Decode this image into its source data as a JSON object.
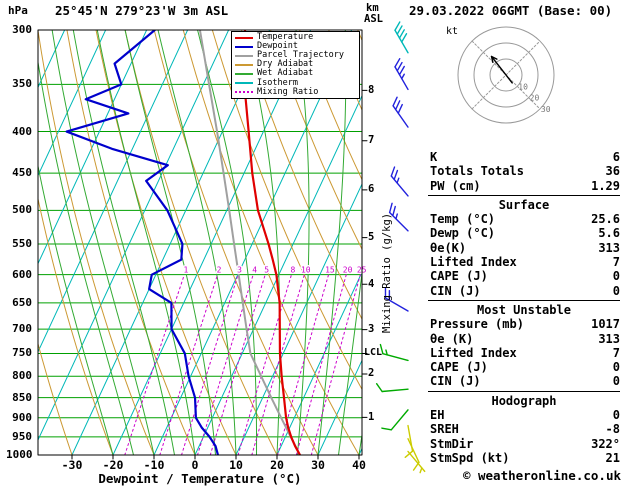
{
  "title": "25°45'N 279°23'W 3m ASL",
  "datetime": "29.03.2022 06GMT (Base: 00)",
  "copyright": "© weatheronline.co.uk",
  "axes": {
    "pressure_unit": "hPa",
    "pressure_ticks": [
      300,
      350,
      400,
      450,
      500,
      550,
      600,
      650,
      700,
      750,
      800,
      850,
      900,
      950,
      1000
    ],
    "temp_ticks": [
      -30,
      -20,
      -10,
      0,
      10,
      20,
      30,
      40
    ],
    "x_title": "Dewpoint / Temperature (°C)",
    "km_unit": "km",
    "asl_unit": "ASL",
    "km_ticks": [
      1,
      2,
      3,
      4,
      5,
      6,
      7,
      8
    ],
    "mixing_axis_label": "Mixing Ratio (g/kg)",
    "lcl_label": "LCL"
  },
  "legend": [
    {
      "label": "Temperature",
      "color": "#e00000",
      "style": "solid"
    },
    {
      "label": "Dewpoint",
      "color": "#0000cc",
      "style": "solid"
    },
    {
      "label": "Parcel Trajectory",
      "color": "#a0a0a0",
      "style": "solid"
    },
    {
      "label": "Dry Adiabat",
      "color": "#cc9933",
      "style": "solid"
    },
    {
      "label": "Wet Adiabat",
      "color": "#33aa33",
      "style": "solid"
    },
    {
      "label": "Isotherm",
      "color": "#00b8b8",
      "style": "solid"
    },
    {
      "label": "Mixing Ratio",
      "color": "#cc00cc",
      "style": "dotted"
    }
  ],
  "chart_data": {
    "type": "skewt_log_p_sounding",
    "pressure_range_hpa": [
      300,
      1000
    ],
    "surface_temp_c": 25.6,
    "surface_dewp_c": 5.6,
    "lcl_hpa": 750,
    "colors": {
      "temperature": "#e00000",
      "dewpoint": "#0000cc",
      "parcel": "#a0a0a0",
      "dry_adiabat": "#cc9933",
      "wet_adiabat": "#33aa33",
      "isotherm": "#00b8b8",
      "mixing_ratio": "#cc00cc",
      "pressure_grid": "#00a000",
      "frame": "#000000"
    },
    "temperature_profile": {
      "pressure": [
        1000,
        975,
        950,
        925,
        900,
        850,
        800,
        750,
        700,
        650,
        600,
        575,
        550,
        500,
        450,
        400,
        350,
        300
      ],
      "values": [
        25.6,
        23.4,
        21.4,
        19.6,
        18.0,
        15.2,
        12.2,
        9.2,
        6.4,
        3.4,
        -0.6,
        -3.2,
        -6.0,
        -12.4,
        -18.0,
        -23.6,
        -30.0,
        -36.0
      ]
    },
    "dewpoint_profile": {
      "pressure": [
        1000,
        975,
        950,
        925,
        900,
        850,
        800,
        750,
        700,
        650,
        625,
        600,
        575,
        550,
        500,
        460,
        440,
        420,
        400,
        380,
        365,
        350,
        330,
        300
      ],
      "values": [
        5.6,
        4.0,
        1.5,
        -1.5,
        -4.0,
        -6.5,
        -10.5,
        -14.0,
        -20.0,
        -23.0,
        -30.0,
        -31.0,
        -25.5,
        -27.0,
        -34.5,
        -43.0,
        -39.5,
        -55.0,
        -68.0,
        -55.0,
        -67.0,
        -60.0,
        -64.0,
        -58.0
      ]
    },
    "parcel_profile": {
      "pressure": [
        1000,
        950,
        900,
        850,
        800,
        750,
        700,
        650,
        600,
        550,
        500,
        450,
        400,
        350,
        300
      ],
      "values": [
        25.6,
        21.3,
        16.8,
        12.1,
        7.2,
        2.0,
        -1.7,
        -5.6,
        -9.8,
        -14.4,
        -19.4,
        -25.0,
        -31.3,
        -38.6,
        -47.0
      ]
    },
    "mixing_ratio_lines_gkg": [
      1,
      2,
      3,
      4,
      5,
      8,
      10,
      15,
      20,
      25
    ],
    "wind_barbs": [
      {
        "pressure_hpa": 320,
        "speed_kt": 40,
        "dir_deg": 330,
        "color": "#00b8b8"
      },
      {
        "pressure_hpa": 355,
        "speed_kt": 35,
        "dir_deg": 330,
        "color": "#2222dd"
      },
      {
        "pressure_hpa": 395,
        "speed_kt": 30,
        "dir_deg": 325,
        "color": "#2222dd"
      },
      {
        "pressure_hpa": 480,
        "speed_kt": 25,
        "dir_deg": 320,
        "color": "#2222dd"
      },
      {
        "pressure_hpa": 530,
        "speed_kt": 25,
        "dir_deg": 315,
        "color": "#2222dd"
      },
      {
        "pressure_hpa": 665,
        "speed_kt": 20,
        "dir_deg": 300,
        "color": "#2222dd"
      },
      {
        "pressure_hpa": 765,
        "speed_kt": 15,
        "dir_deg": 285,
        "color": "#00aa00"
      },
      {
        "pressure_hpa": 830,
        "speed_kt": 10,
        "dir_deg": 265,
        "color": "#00aa00"
      },
      {
        "pressure_hpa": 880,
        "speed_kt": 10,
        "dir_deg": 220,
        "color": "#00aa00"
      },
      {
        "pressure_hpa": 920,
        "speed_kt": 10,
        "dir_deg": 170,
        "color": "#cccc00"
      },
      {
        "pressure_hpa": 955,
        "speed_kt": 8,
        "dir_deg": 155,
        "color": "#cccc00"
      },
      {
        "pressure_hpa": 990,
        "speed_kt": 5,
        "dir_deg": 140,
        "color": "#cccc00"
      }
    ]
  },
  "hodograph": {
    "unit_label": "kt",
    "rings_kt": [
      10,
      20,
      30
    ],
    "storm_dir_deg": 322,
    "storm_speed_kt": 21
  },
  "table": {
    "sections": [
      {
        "header": "",
        "rows": [
          [
            "K",
            "6"
          ],
          [
            "Totals Totals",
            "36"
          ],
          [
            "PW (cm)",
            "1.29"
          ]
        ]
      },
      {
        "header": "Surface",
        "rows": [
          [
            "Temp (°C)",
            "25.6"
          ],
          [
            "Dewp (°C)",
            "5.6"
          ],
          [
            "θe(K)",
            "313"
          ],
          [
            "Lifted Index",
            "7"
          ],
          [
            "CAPE (J)",
            "0"
          ],
          [
            "CIN (J)",
            "0"
          ]
        ]
      },
      {
        "header": "Most Unstable",
        "rows": [
          [
            "Pressure (mb)",
            "1017"
          ],
          [
            "θe (K)",
            "313"
          ],
          [
            "Lifted Index",
            "7"
          ],
          [
            "CAPE (J)",
            "0"
          ],
          [
            "CIN (J)",
            "0"
          ]
        ]
      },
      {
        "header": "Hodograph",
        "rows": [
          [
            "EH",
            "0"
          ],
          [
            "SREH",
            "-8"
          ],
          [
            "StmDir",
            "322°"
          ],
          [
            "StmSpd (kt)",
            "21"
          ]
        ]
      }
    ]
  }
}
